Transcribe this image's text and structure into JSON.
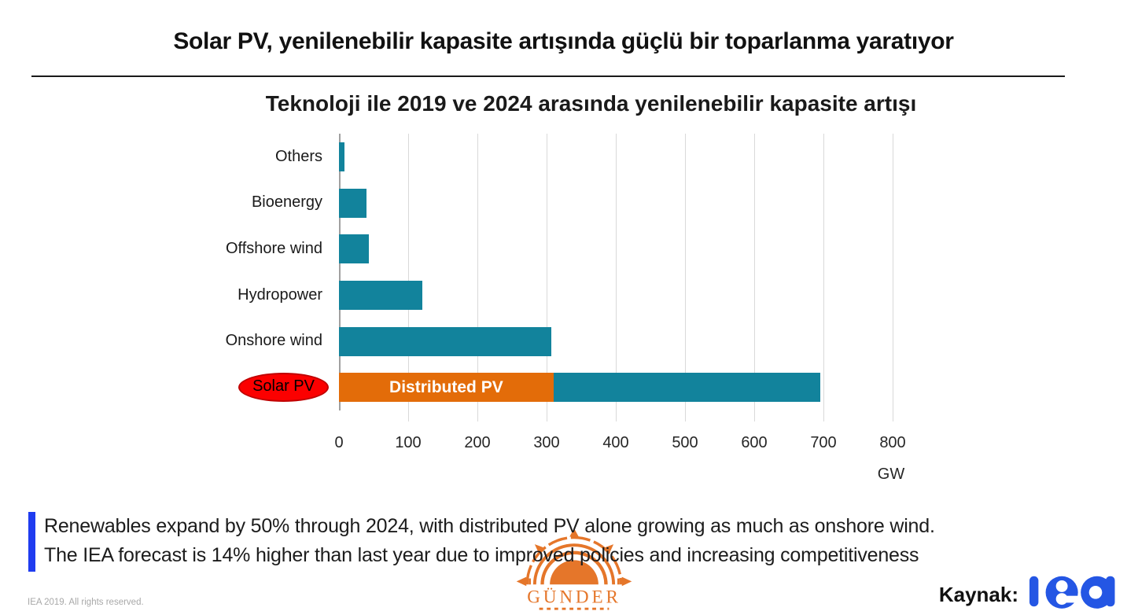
{
  "slide": {
    "title": "Solar PV, yenilenebilir kapasite artışında güçlü bir toparlanma yaratıyor"
  },
  "chart_data": {
    "type": "bar",
    "orientation": "horizontal",
    "title": "Teknoloji ile 2019 ve 2024 arasında yenilenebilir kapasite artışı",
    "unit": "GW",
    "xlim": [
      0,
      800
    ],
    "xticks": [
      0,
      100,
      200,
      300,
      400,
      500,
      600,
      700,
      800
    ],
    "gridlines": true,
    "legend": "none",
    "categories": [
      "Others",
      "Bioenergy",
      "Offshore wind",
      "Hydropower",
      "Onshore wind",
      "Solar PV"
    ],
    "values_total_gw": [
      8,
      40,
      43,
      120,
      307,
      695
    ],
    "bars": [
      {
        "label": "Others",
        "segments": [
          {
            "value": 8,
            "color_key": "bar_teal"
          }
        ]
      },
      {
        "label": "Bioenergy",
        "segments": [
          {
            "value": 40,
            "color_key": "bar_teal"
          }
        ]
      },
      {
        "label": "Offshore wind",
        "segments": [
          {
            "value": 43,
            "color_key": "bar_teal"
          }
        ]
      },
      {
        "label": "Hydropower",
        "segments": [
          {
            "value": 120,
            "color_key": "bar_teal"
          }
        ]
      },
      {
        "label": "Onshore wind",
        "segments": [
          {
            "value": 307,
            "color_key": "bar_teal"
          }
        ]
      },
      {
        "label": "Solar PV",
        "highlighted": true,
        "segments": [
          {
            "value": 310,
            "color_key": "bar_orange",
            "text": "Distributed PV"
          },
          {
            "value": 385,
            "color_key": "bar_teal"
          }
        ]
      }
    ]
  },
  "callout": {
    "lines": [
      "Renewables expand by 50% through 2024, with distributed PV alone growing as much as onshore wind.",
      "The IEA forecast is 14% higher than last year due to improved policies and increasing competitiveness"
    ]
  },
  "footer": {
    "copyright": "IEA 2019. All rights reserved.",
    "source_label": "Kaynak:",
    "iea_logo": "iea",
    "gunder_logo": "GÜNDER"
  },
  "colors": {
    "bar_teal": "#12839C",
    "bar_orange": "#E36C09",
    "highlight_red": "#FB0000",
    "highlight_red_border": "#C00000",
    "accent_blue": "#1F3CF0",
    "iea_blue": "#2456E4",
    "gunder_orange": "#E5762A",
    "gridline": "#D9D9D9",
    "axis_line": "#A0A0A0",
    "muted_text": "#A8A8A8"
  }
}
